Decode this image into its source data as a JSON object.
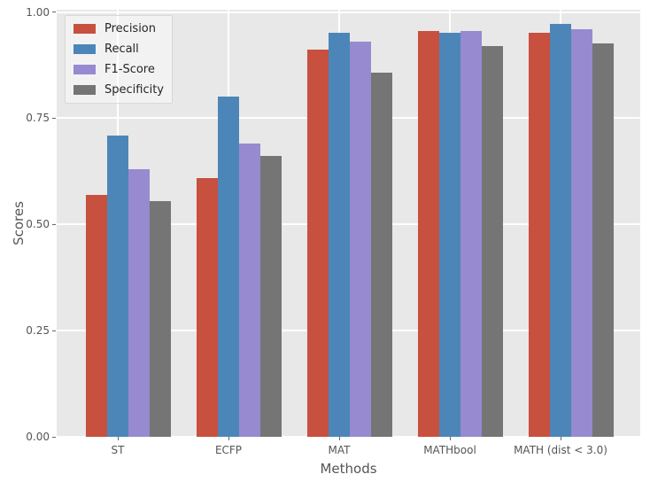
{
  "chart_data": {
    "type": "bar",
    "title": "",
    "xlabel": "Methods",
    "ylabel": "Scores",
    "categories": [
      "ST",
      "ECFP",
      "MAT",
      "MATHbool",
      "MATH (dist < 3.0)"
    ],
    "series": [
      {
        "name": "Precision",
        "color": "#C8503E",
        "values": [
          0.57,
          0.61,
          0.912,
          0.955,
          0.951
        ]
      },
      {
        "name": "Recall",
        "color": "#4C86B8",
        "values": [
          0.71,
          0.8,
          0.95,
          0.95,
          0.972
        ]
      },
      {
        "name": "F1-Score",
        "color": "#978AD0",
        "values": [
          0.63,
          0.69,
          0.93,
          0.955,
          0.959
        ]
      },
      {
        "name": "Specificity",
        "color": "#757575",
        "values": [
          0.555,
          0.662,
          0.858,
          0.92,
          0.927
        ]
      }
    ],
    "ylim": [
      0.0,
      1.0
    ],
    "yticks": [
      "0.00",
      "0.25",
      "0.50",
      "0.75",
      "1.00"
    ],
    "grid": true,
    "grid_color": "#FFFFFF",
    "plot_background": "#E8E8E8",
    "page_background": "#FFFFFF",
    "text_color": "#555555",
    "legend_position": "upper-left",
    "legend_entries": [
      "Precision",
      "Recall",
      "F1-Score",
      "Specificity"
    ]
  }
}
